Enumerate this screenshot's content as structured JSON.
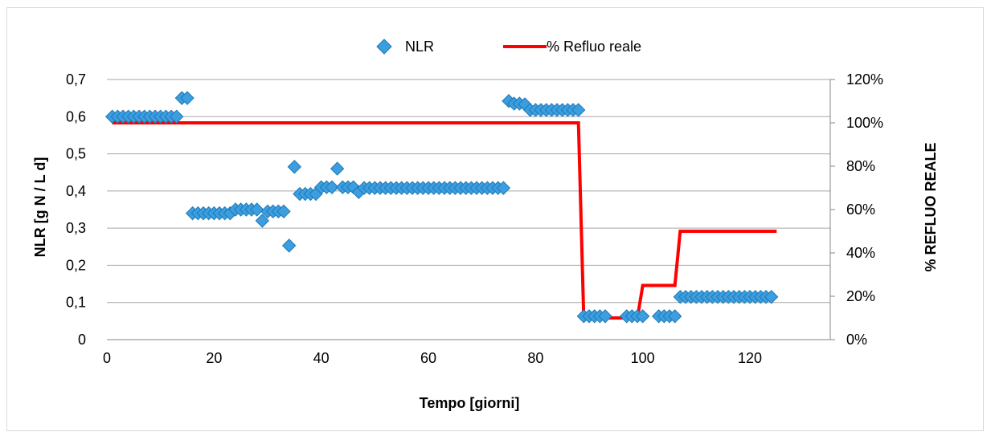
{
  "chart_data": {
    "type": "scatter",
    "xlabel": "Tempo [giorni]",
    "ylabel": "NLR  [g N / L d]",
    "y2label": "% REFLUO REALE",
    "xlim": [
      0,
      135
    ],
    "ylim": [
      0,
      0.7
    ],
    "y2lim": [
      0,
      1.2
    ],
    "x_ticks": [
      "0",
      "20",
      "40",
      "60",
      "80",
      "100",
      "120"
    ],
    "y_ticks": [
      "0",
      "0,1",
      "0,2",
      "0,3",
      "0,4",
      "0,5",
      "0,6",
      "0,7"
    ],
    "y2_ticks": [
      "0%",
      "20%",
      "40%",
      "60%",
      "80%",
      "100%",
      "120%"
    ],
    "grid": true,
    "legend_position": "top",
    "legend": {
      "series1": "NLR",
      "series2": "% Refluo reale"
    },
    "colors": {
      "marker_fill": "#3b9ee0",
      "marker_stroke": "#1f78b4",
      "line": "#ff0000",
      "grid": "#a6a6a6"
    },
    "series": [
      {
        "name": "NLR",
        "type": "scatter",
        "axis": "left",
        "points": [
          [
            1,
            0.6
          ],
          [
            2,
            0.6
          ],
          [
            3,
            0.6
          ],
          [
            4,
            0.6
          ],
          [
            5,
            0.6
          ],
          [
            6,
            0.6
          ],
          [
            7,
            0.6
          ],
          [
            8,
            0.6
          ],
          [
            9,
            0.6
          ],
          [
            10,
            0.6
          ],
          [
            11,
            0.6
          ],
          [
            12,
            0.6
          ],
          [
            13,
            0.6
          ],
          [
            14,
            0.65
          ],
          [
            15,
            0.65
          ],
          [
            16,
            0.34
          ],
          [
            17,
            0.34
          ],
          [
            18,
            0.34
          ],
          [
            19,
            0.34
          ],
          [
            20,
            0.34
          ],
          [
            21,
            0.34
          ],
          [
            22,
            0.34
          ],
          [
            23,
            0.34
          ],
          [
            24,
            0.35
          ],
          [
            25,
            0.35
          ],
          [
            26,
            0.35
          ],
          [
            27,
            0.35
          ],
          [
            28,
            0.35
          ],
          [
            29,
            0.32
          ],
          [
            30,
            0.345
          ],
          [
            31,
            0.345
          ],
          [
            32,
            0.345
          ],
          [
            33,
            0.345
          ],
          [
            34,
            0.253
          ],
          [
            35,
            0.465
          ],
          [
            36,
            0.392
          ],
          [
            37,
            0.392
          ],
          [
            38,
            0.392
          ],
          [
            39,
            0.392
          ],
          [
            40,
            0.41
          ],
          [
            41,
            0.41
          ],
          [
            42,
            0.41
          ],
          [
            43,
            0.46
          ],
          [
            44,
            0.41
          ],
          [
            45,
            0.41
          ],
          [
            46,
            0.41
          ],
          [
            47,
            0.397
          ],
          [
            48,
            0.408
          ],
          [
            49,
            0.408
          ],
          [
            50,
            0.408
          ],
          [
            51,
            0.408
          ],
          [
            52,
            0.408
          ],
          [
            53,
            0.408
          ],
          [
            54,
            0.408
          ],
          [
            55,
            0.408
          ],
          [
            56,
            0.408
          ],
          [
            57,
            0.408
          ],
          [
            58,
            0.408
          ],
          [
            59,
            0.408
          ],
          [
            60,
            0.408
          ],
          [
            61,
            0.408
          ],
          [
            62,
            0.408
          ],
          [
            63,
            0.408
          ],
          [
            64,
            0.408
          ],
          [
            65,
            0.408
          ],
          [
            66,
            0.408
          ],
          [
            67,
            0.408
          ],
          [
            68,
            0.408
          ],
          [
            69,
            0.408
          ],
          [
            70,
            0.408
          ],
          [
            71,
            0.408
          ],
          [
            72,
            0.408
          ],
          [
            73,
            0.408
          ],
          [
            74,
            0.408
          ],
          [
            75,
            0.642
          ],
          [
            76,
            0.635
          ],
          [
            77,
            0.635
          ],
          [
            78,
            0.633
          ],
          [
            79,
            0.618
          ],
          [
            80,
            0.618
          ],
          [
            81,
            0.618
          ],
          [
            82,
            0.618
          ],
          [
            83,
            0.618
          ],
          [
            84,
            0.618
          ],
          [
            85,
            0.618
          ],
          [
            86,
            0.618
          ],
          [
            87,
            0.618
          ],
          [
            88,
            0.618
          ],
          [
            89,
            0.063
          ],
          [
            90,
            0.063
          ],
          [
            91,
            0.063
          ],
          [
            92,
            0.063
          ],
          [
            93,
            0.063
          ],
          [
            97,
            0.063
          ],
          [
            98,
            0.063
          ],
          [
            99,
            0.063
          ],
          [
            100,
            0.063
          ],
          [
            103,
            0.063
          ],
          [
            104,
            0.063
          ],
          [
            105,
            0.063
          ],
          [
            106,
            0.063
          ],
          [
            107,
            0.115
          ],
          [
            108,
            0.115
          ],
          [
            109,
            0.115
          ],
          [
            110,
            0.115
          ],
          [
            111,
            0.115
          ],
          [
            112,
            0.115
          ],
          [
            113,
            0.115
          ],
          [
            114,
            0.115
          ],
          [
            115,
            0.115
          ],
          [
            116,
            0.115
          ],
          [
            117,
            0.115
          ],
          [
            118,
            0.115
          ],
          [
            119,
            0.115
          ],
          [
            120,
            0.115
          ],
          [
            121,
            0.115
          ],
          [
            122,
            0.115
          ],
          [
            123,
            0.115
          ],
          [
            124,
            0.115
          ]
        ]
      },
      {
        "name": "% Refluo reale",
        "type": "line",
        "axis": "right",
        "points": [
          [
            1,
            1.0
          ],
          [
            88,
            1.0
          ],
          [
            89,
            0.1
          ],
          [
            99,
            0.1
          ],
          [
            100,
            0.25
          ],
          [
            106,
            0.25
          ],
          [
            107,
            0.5
          ],
          [
            125,
            0.5
          ]
        ]
      }
    ]
  }
}
